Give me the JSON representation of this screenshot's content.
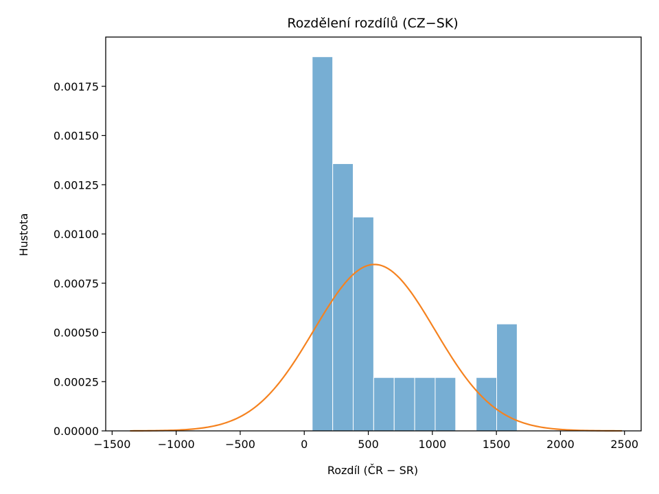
{
  "chart_data": {
    "type": "bar",
    "title": "Rozdělení rozdílů (CZ−SK)",
    "xlabel": "Rozdíl (ČR − SR)",
    "ylabel": "Hustota",
    "xlim": [
      -1550,
      2630
    ],
    "ylim": [
      0,
      0.002
    ],
    "x_ticks": [
      -1500,
      -1000,
      -500,
      0,
      500,
      1000,
      1500,
      2000,
      2500
    ],
    "x_tick_labels": [
      "−1500",
      "−1000",
      "−500",
      "0",
      "500",
      "1000",
      "1500",
      "2000",
      "2500"
    ],
    "y_ticks": [
      0,
      0.00025,
      0.0005,
      0.00075,
      0.001,
      0.00125,
      0.0015,
      0.00175
    ],
    "y_tick_labels": [
      "0.00000",
      "0.00025",
      "0.00050",
      "0.00075",
      "0.00100",
      "0.00125",
      "0.00150",
      "0.00175"
    ],
    "histogram": {
      "color": "#77aed3",
      "edge_color": "#ffffff",
      "bins": [
        {
          "x0": 62,
          "x1": 222,
          "density": 0.0019
        },
        {
          "x0": 222,
          "x1": 382,
          "density": 0.001357
        },
        {
          "x0": 382,
          "x1": 542,
          "density": 0.001086
        },
        {
          "x0": 542,
          "x1": 702,
          "density": 0.000271
        },
        {
          "x0": 702,
          "x1": 862,
          "density": 0.000271
        },
        {
          "x0": 862,
          "x1": 1022,
          "density": 0.000271
        },
        {
          "x0": 1022,
          "x1": 1182,
          "density": 0.000271
        },
        {
          "x0": 1182,
          "x1": 1342,
          "density": 0
        },
        {
          "x0": 1342,
          "x1": 1502,
          "density": 0.000271
        },
        {
          "x0": 1502,
          "x1": 1662,
          "density": 0.000543
        }
      ]
    },
    "curve": {
      "type": "normal_pdf",
      "color": "#f5821f",
      "mean": 548,
      "std": 472,
      "x_range": [
        -1360,
        2480
      ]
    },
    "grid": false,
    "legend": "none"
  }
}
